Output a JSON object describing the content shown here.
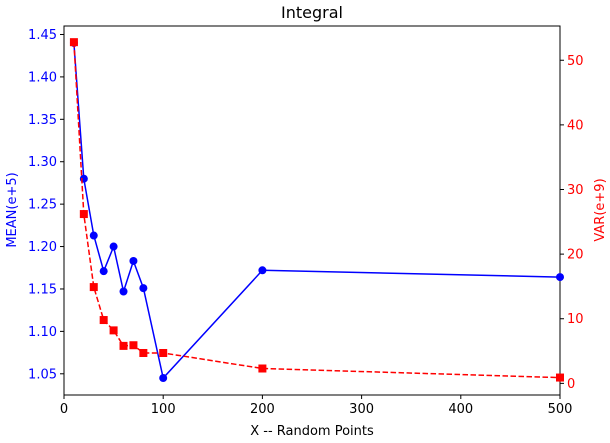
{
  "chart_data": {
    "type": "line",
    "title": "Integral",
    "xlabel": "X -- Random Points",
    "ylabel_left": "MEAN(e+5)",
    "ylabel_right": "VAR(e+9)",
    "xlim": [
      0,
      500
    ],
    "ylim_left": [
      1.025,
      1.46
    ],
    "ylim_right": [
      -1.8,
      55.3
    ],
    "xticks": [
      "0",
      "100",
      "200",
      "300",
      "400",
      "500"
    ],
    "yticks_left": [
      "1.05",
      "1.10",
      "1.15",
      "1.20",
      "1.25",
      "1.30",
      "1.35",
      "1.40",
      "1.45"
    ],
    "yticks_right": [
      "0",
      "10",
      "20",
      "30",
      "40",
      "50"
    ],
    "grid": false,
    "colors": {
      "left_axis": "#0000ff",
      "right_axis": "#ff0000"
    },
    "series": [
      {
        "axis": "left",
        "style": "solid",
        "marker": "circle",
        "color": "#0000ff",
        "x": [
          10,
          20,
          30,
          40,
          50,
          60,
          70,
          80,
          100,
          200,
          500
        ],
        "values": [
          1.44,
          1.28,
          1.213,
          1.171,
          1.2,
          1.147,
          1.183,
          1.151,
          1.045,
          1.172,
          1.164
        ]
      },
      {
        "axis": "right",
        "style": "dashed",
        "marker": "square",
        "color": "#ff0000",
        "x": [
          10,
          20,
          30,
          40,
          50,
          60,
          70,
          80,
          100,
          200,
          500
        ],
        "values": [
          52.8,
          26.2,
          14.9,
          9.8,
          8.2,
          5.8,
          5.9,
          4.7,
          4.7,
          2.3,
          0.9
        ]
      }
    ]
  }
}
